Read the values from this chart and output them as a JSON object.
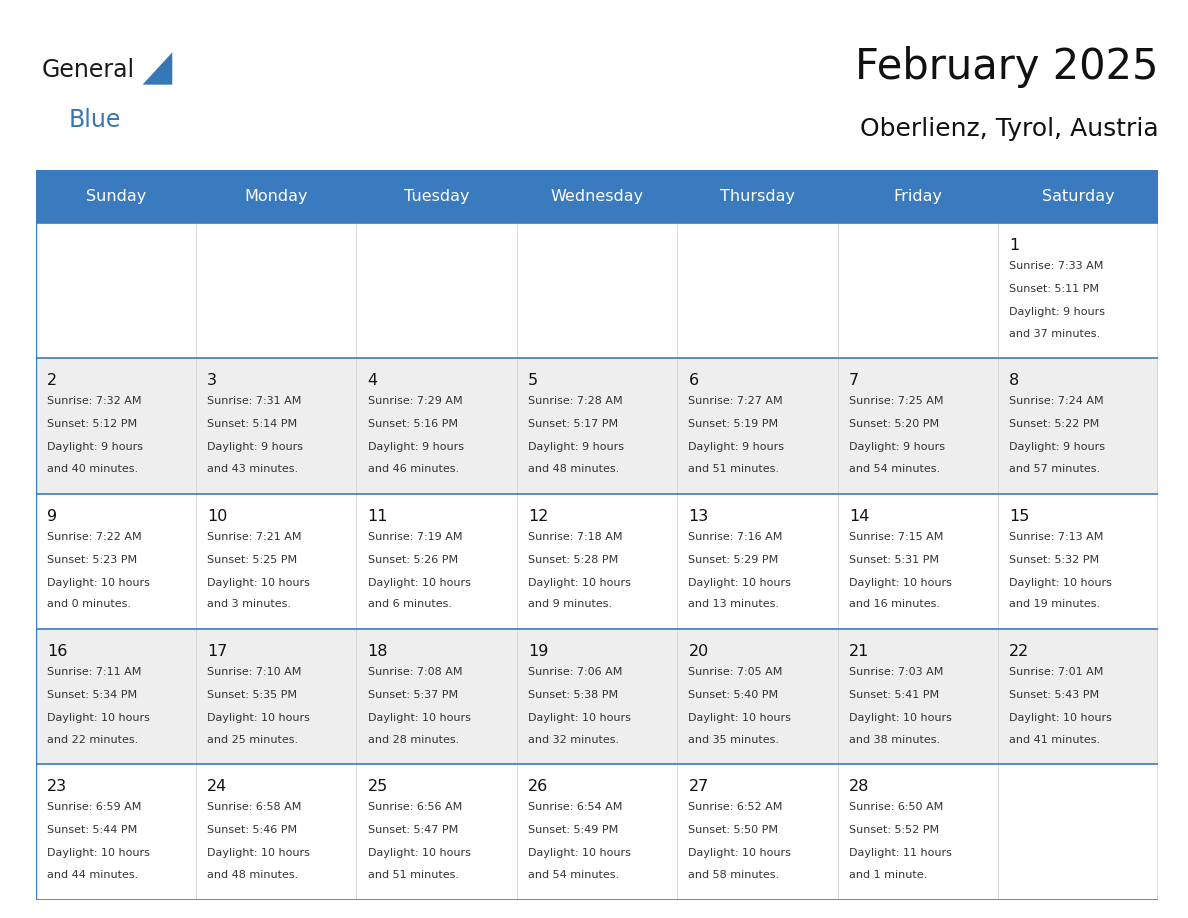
{
  "title": "February 2025",
  "subtitle": "Oberlienz, Tyrol, Austria",
  "header_color": "#3a7abf",
  "header_text_color": "#ffffff",
  "border_color": "#3a7abf",
  "thin_line_color": "#aaaaaa",
  "day_headers": [
    "Sunday",
    "Monday",
    "Tuesday",
    "Wednesday",
    "Thursday",
    "Friday",
    "Saturday"
  ],
  "logo_color1": "#1a1a1a",
  "logo_color2": "#3578b5",
  "days": [
    {
      "day": 1,
      "col": 6,
      "row": 0,
      "sunrise": "7:33 AM",
      "sunset": "5:11 PM",
      "daylight": "9 hours and 37 minutes."
    },
    {
      "day": 2,
      "col": 0,
      "row": 1,
      "sunrise": "7:32 AM",
      "sunset": "5:12 PM",
      "daylight": "9 hours and 40 minutes."
    },
    {
      "day": 3,
      "col": 1,
      "row": 1,
      "sunrise": "7:31 AM",
      "sunset": "5:14 PM",
      "daylight": "9 hours and 43 minutes."
    },
    {
      "day": 4,
      "col": 2,
      "row": 1,
      "sunrise": "7:29 AM",
      "sunset": "5:16 PM",
      "daylight": "9 hours and 46 minutes."
    },
    {
      "day": 5,
      "col": 3,
      "row": 1,
      "sunrise": "7:28 AM",
      "sunset": "5:17 PM",
      "daylight": "9 hours and 48 minutes."
    },
    {
      "day": 6,
      "col": 4,
      "row": 1,
      "sunrise": "7:27 AM",
      "sunset": "5:19 PM",
      "daylight": "9 hours and 51 minutes."
    },
    {
      "day": 7,
      "col": 5,
      "row": 1,
      "sunrise": "7:25 AM",
      "sunset": "5:20 PM",
      "daylight": "9 hours and 54 minutes."
    },
    {
      "day": 8,
      "col": 6,
      "row": 1,
      "sunrise": "7:24 AM",
      "sunset": "5:22 PM",
      "daylight": "9 hours and 57 minutes."
    },
    {
      "day": 9,
      "col": 0,
      "row": 2,
      "sunrise": "7:22 AM",
      "sunset": "5:23 PM",
      "daylight": "10 hours and 0 minutes."
    },
    {
      "day": 10,
      "col": 1,
      "row": 2,
      "sunrise": "7:21 AM",
      "sunset": "5:25 PM",
      "daylight": "10 hours and 3 minutes."
    },
    {
      "day": 11,
      "col": 2,
      "row": 2,
      "sunrise": "7:19 AM",
      "sunset": "5:26 PM",
      "daylight": "10 hours and 6 minutes."
    },
    {
      "day": 12,
      "col": 3,
      "row": 2,
      "sunrise": "7:18 AM",
      "sunset": "5:28 PM",
      "daylight": "10 hours and 9 minutes."
    },
    {
      "day": 13,
      "col": 4,
      "row": 2,
      "sunrise": "7:16 AM",
      "sunset": "5:29 PM",
      "daylight": "10 hours and 13 minutes."
    },
    {
      "day": 14,
      "col": 5,
      "row": 2,
      "sunrise": "7:15 AM",
      "sunset": "5:31 PM",
      "daylight": "10 hours and 16 minutes."
    },
    {
      "day": 15,
      "col": 6,
      "row": 2,
      "sunrise": "7:13 AM",
      "sunset": "5:32 PM",
      "daylight": "10 hours and 19 minutes."
    },
    {
      "day": 16,
      "col": 0,
      "row": 3,
      "sunrise": "7:11 AM",
      "sunset": "5:34 PM",
      "daylight": "10 hours and 22 minutes."
    },
    {
      "day": 17,
      "col": 1,
      "row": 3,
      "sunrise": "7:10 AM",
      "sunset": "5:35 PM",
      "daylight": "10 hours and 25 minutes."
    },
    {
      "day": 18,
      "col": 2,
      "row": 3,
      "sunrise": "7:08 AM",
      "sunset": "5:37 PM",
      "daylight": "10 hours and 28 minutes."
    },
    {
      "day": 19,
      "col": 3,
      "row": 3,
      "sunrise": "7:06 AM",
      "sunset": "5:38 PM",
      "daylight": "10 hours and 32 minutes."
    },
    {
      "day": 20,
      "col": 4,
      "row": 3,
      "sunrise": "7:05 AM",
      "sunset": "5:40 PM",
      "daylight": "10 hours and 35 minutes."
    },
    {
      "day": 21,
      "col": 5,
      "row": 3,
      "sunrise": "7:03 AM",
      "sunset": "5:41 PM",
      "daylight": "10 hours and 38 minutes."
    },
    {
      "day": 22,
      "col": 6,
      "row": 3,
      "sunrise": "7:01 AM",
      "sunset": "5:43 PM",
      "daylight": "10 hours and 41 minutes."
    },
    {
      "day": 23,
      "col": 0,
      "row": 4,
      "sunrise": "6:59 AM",
      "sunset": "5:44 PM",
      "daylight": "10 hours and 44 minutes."
    },
    {
      "day": 24,
      "col": 1,
      "row": 4,
      "sunrise": "6:58 AM",
      "sunset": "5:46 PM",
      "daylight": "10 hours and 48 minutes."
    },
    {
      "day": 25,
      "col": 2,
      "row": 4,
      "sunrise": "6:56 AM",
      "sunset": "5:47 PM",
      "daylight": "10 hours and 51 minutes."
    },
    {
      "day": 26,
      "col": 3,
      "row": 4,
      "sunrise": "6:54 AM",
      "sunset": "5:49 PM",
      "daylight": "10 hours and 54 minutes."
    },
    {
      "day": 27,
      "col": 4,
      "row": 4,
      "sunrise": "6:52 AM",
      "sunset": "5:50 PM",
      "daylight": "10 hours and 58 minutes."
    },
    {
      "day": 28,
      "col": 5,
      "row": 4,
      "sunrise": "6:50 AM",
      "sunset": "5:52 PM",
      "daylight": "11 hours and 1 minute."
    }
  ],
  "num_rows": 5,
  "num_cols": 7,
  "fig_width": 11.88,
  "fig_height": 9.18
}
